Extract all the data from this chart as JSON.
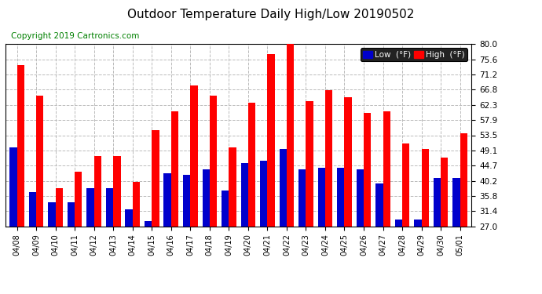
{
  "title": "Outdoor Temperature Daily High/Low 20190502",
  "copyright": "Copyright 2019 Cartronics.com",
  "dates": [
    "04/08",
    "04/09",
    "04/10",
    "04/11",
    "04/12",
    "04/13",
    "04/14",
    "04/15",
    "04/16",
    "04/17",
    "04/18",
    "04/19",
    "04/20",
    "04/21",
    "04/22",
    "04/23",
    "04/24",
    "04/25",
    "04/26",
    "04/27",
    "04/28",
    "04/29",
    "04/30",
    "05/01"
  ],
  "high": [
    74.0,
    65.0,
    38.0,
    43.0,
    47.5,
    47.5,
    40.0,
    55.0,
    60.5,
    68.0,
    65.0,
    50.0,
    63.0,
    77.0,
    80.0,
    63.5,
    66.5,
    64.5,
    60.0,
    60.5,
    51.0,
    49.5,
    47.0,
    54.0
  ],
  "low": [
    50.0,
    37.0,
    34.0,
    34.0,
    38.0,
    38.0,
    32.0,
    28.5,
    42.5,
    42.0,
    43.5,
    37.5,
    45.5,
    46.0,
    49.5,
    43.5,
    44.0,
    44.0,
    43.5,
    39.5,
    29.0,
    29.0,
    41.0,
    41.0
  ],
  "high_color": "#ff0000",
  "low_color": "#0000cc",
  "ymin": 27.0,
  "ymax": 80.0,
  "yticks": [
    27.0,
    31.4,
    35.8,
    40.2,
    44.7,
    49.1,
    53.5,
    57.9,
    62.3,
    66.8,
    71.2,
    75.6,
    80.0
  ],
  "bg_color": "#ffffff",
  "grid_color": "#bbbbbb",
  "bar_width": 0.38,
  "title_fontsize": 11,
  "copyright_fontsize": 7.5,
  "legend_low_label": "Low  (°F)",
  "legend_high_label": "High  (°F)"
}
